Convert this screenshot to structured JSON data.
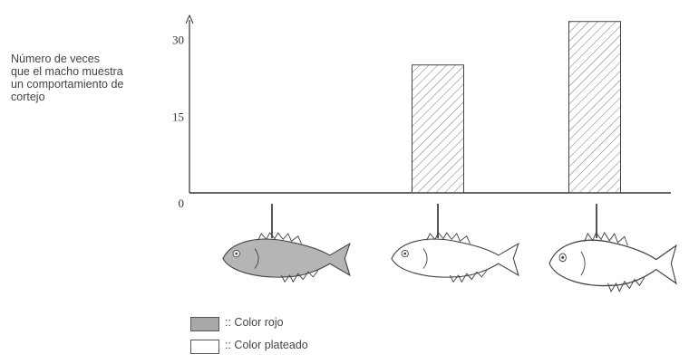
{
  "chart_data": {
    "type": "bar",
    "ylabel": "Número de veces\nque el macho muestra\nun comportamiento de\ncortejo",
    "yticks": [
      0,
      15,
      30
    ],
    "ylim": [
      0,
      34
    ],
    "categories": [
      "",
      "",
      ""
    ],
    "values": [
      0,
      25,
      33.5
    ],
    "bar_fill": "hatched"
  },
  "legend": [
    {
      "label": ":: Color rojo",
      "color": "#a9a9a9"
    },
    {
      "label": ":: Color plateado",
      "color": "#ffffff"
    }
  ]
}
